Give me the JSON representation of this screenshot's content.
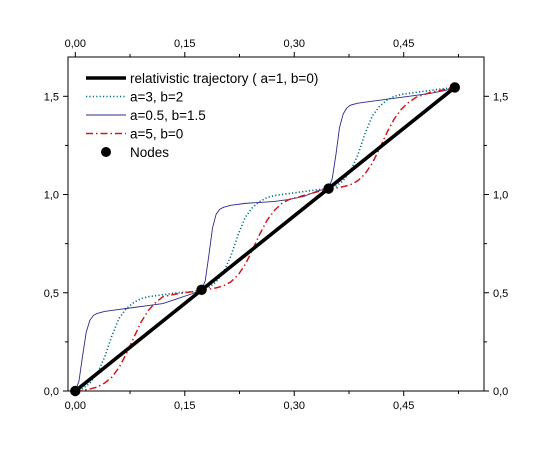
{
  "chart_data": {
    "type": "line",
    "title": "",
    "xlabel": "",
    "ylabel": "",
    "xlim": [
      -0.01,
      0.56
    ],
    "ylim": [
      0.0,
      1.7
    ],
    "x_ticks": [
      "0,00",
      "0,15",
      "0,30",
      "0,45"
    ],
    "x_tick_values": [
      0.0,
      0.15,
      0.3,
      0.45
    ],
    "y_ticks": [
      "0,0",
      "0,5",
      "1,0",
      "1,5"
    ],
    "y_tick_values": [
      0.0,
      0.5,
      1.0,
      1.5
    ],
    "grid": false,
    "legend_position": "top-left",
    "series": [
      {
        "name": "relativistic trajectory ( a=1, b=0)",
        "color": "#000000",
        "style": "solid-thick",
        "x": [
          0.0,
          0.52
        ],
        "y": [
          0.0,
          1.545
        ]
      },
      {
        "name": "a=3, b=2",
        "color": "#006e7a",
        "style": "dotted",
        "x": [
          0.0,
          0.01,
          0.02,
          0.03,
          0.04,
          0.05,
          0.06,
          0.07,
          0.08,
          0.09,
          0.1,
          0.12,
          0.14,
          0.16,
          0.173,
          0.183,
          0.193,
          0.203,
          0.213,
          0.223,
          0.233,
          0.243,
          0.253,
          0.263,
          0.273,
          0.293,
          0.313,
          0.333,
          0.347,
          0.357,
          0.367,
          0.377,
          0.387,
          0.397,
          0.407,
          0.417,
          0.427,
          0.437,
          0.447,
          0.467,
          0.487,
          0.507,
          0.52
        ],
        "y": [
          0.0,
          0.012,
          0.04,
          0.09,
          0.17,
          0.28,
          0.37,
          0.42,
          0.45,
          0.47,
          0.48,
          0.49,
          0.5,
          0.505,
          0.515,
          0.527,
          0.555,
          0.605,
          0.685,
          0.795,
          0.885,
          0.935,
          0.965,
          0.985,
          0.995,
          1.005,
          1.015,
          1.025,
          1.03,
          1.042,
          1.07,
          1.12,
          1.2,
          1.31,
          1.4,
          1.45,
          1.48,
          1.5,
          1.51,
          1.52,
          1.53,
          1.54,
          1.545
        ]
      },
      {
        "name": "a=0.5, b=1.5",
        "color": "#2b2b8c",
        "style": "thin",
        "x": [
          0.0,
          0.005,
          0.01,
          0.015,
          0.02,
          0.025,
          0.03,
          0.04,
          0.06,
          0.08,
          0.1,
          0.12,
          0.14,
          0.16,
          0.173,
          0.178,
          0.183,
          0.188,
          0.193,
          0.198,
          0.203,
          0.213,
          0.233,
          0.253,
          0.273,
          0.293,
          0.313,
          0.333,
          0.347,
          0.352,
          0.357,
          0.362,
          0.367,
          0.372,
          0.377,
          0.387,
          0.407,
          0.427,
          0.447,
          0.467,
          0.487,
          0.507,
          0.52
        ],
        "y": [
          0.0,
          0.05,
          0.18,
          0.3,
          0.36,
          0.385,
          0.395,
          0.405,
          0.415,
          0.425,
          0.435,
          0.445,
          0.47,
          0.495,
          0.515,
          0.56,
          0.69,
          0.83,
          0.9,
          0.925,
          0.935,
          0.945,
          0.955,
          0.96,
          0.965,
          0.975,
          0.99,
          1.02,
          1.03,
          1.08,
          1.2,
          1.34,
          1.41,
          1.44,
          1.455,
          1.465,
          1.475,
          1.485,
          1.495,
          1.505,
          1.515,
          1.53,
          1.545
        ]
      },
      {
        "name": "a=5, b=0",
        "color": "#d01a1a",
        "style": "dashdot",
        "x": [
          0.0,
          0.01,
          0.02,
          0.03,
          0.04,
          0.05,
          0.06,
          0.07,
          0.08,
          0.09,
          0.1,
          0.11,
          0.12,
          0.14,
          0.16,
          0.173,
          0.183,
          0.193,
          0.203,
          0.213,
          0.223,
          0.233,
          0.243,
          0.253,
          0.263,
          0.273,
          0.283,
          0.293,
          0.313,
          0.333,
          0.347,
          0.357,
          0.367,
          0.377,
          0.387,
          0.397,
          0.407,
          0.417,
          0.427,
          0.437,
          0.447,
          0.457,
          0.467,
          0.487,
          0.507,
          0.52
        ],
        "y": [
          0.0,
          0.003,
          0.01,
          0.02,
          0.04,
          0.07,
          0.12,
          0.19,
          0.27,
          0.35,
          0.41,
          0.45,
          0.48,
          0.495,
          0.505,
          0.515,
          0.518,
          0.525,
          0.535,
          0.555,
          0.59,
          0.645,
          0.72,
          0.8,
          0.87,
          0.92,
          0.955,
          0.975,
          0.995,
          1.015,
          1.03,
          1.033,
          1.04,
          1.05,
          1.07,
          1.105,
          1.16,
          1.235,
          1.315,
          1.385,
          1.435,
          1.47,
          1.495,
          1.52,
          1.535,
          1.545
        ]
      },
      {
        "name": "Nodes",
        "color": "#000000",
        "style": "markers",
        "x": [
          0.0,
          0.173,
          0.347,
          0.52
        ],
        "y": [
          0.0,
          0.515,
          1.03,
          1.545
        ]
      }
    ]
  }
}
